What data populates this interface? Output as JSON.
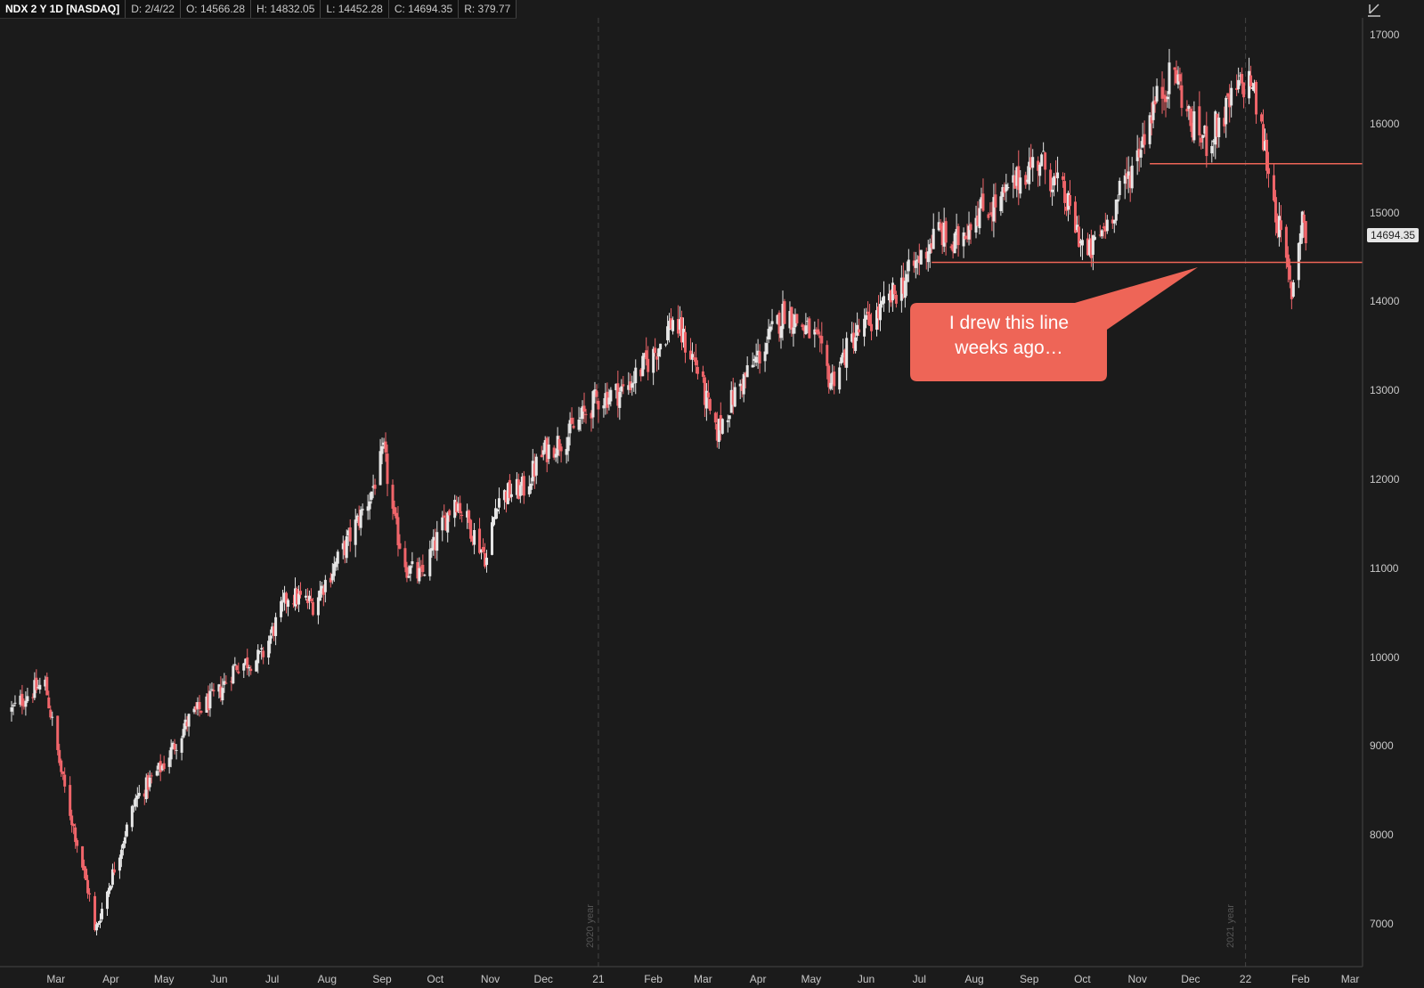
{
  "header": {
    "title": "NDX 2 Y 1D [NASDAQ]",
    "date": "D: 2/4/22",
    "open": "O: 14566.28",
    "high": "H: 14832.05",
    "low": "L: 14452.28",
    "close": "C: 14694.35",
    "range": "R: 379.77"
  },
  "colors": {
    "background": "#1b1b1b",
    "up_candle": "#e6e6e6",
    "down_candle": "#f0656a",
    "annotation": "#ee6557",
    "grid": "#2d2d2d"
  },
  "price_tag": "14694.35",
  "callout": {
    "line1": "I drew this line",
    "line2": "weeks ago…"
  },
  "year_labels": [
    "2020 year",
    "2021 year"
  ],
  "chart_data": {
    "type": "candlestick",
    "title": "NDX 2 Y 1D [NASDAQ]",
    "ylim": [
      6400,
      17300
    ],
    "y_ticks": [
      7000,
      8000,
      9000,
      10000,
      11000,
      12000,
      13000,
      14000,
      15000,
      16000,
      17000
    ],
    "x_tick_labels": [
      "Mar",
      "Apr",
      "May",
      "Jun",
      "Jul",
      "Aug",
      "Sep",
      "Oct",
      "Nov",
      "Dec",
      "21",
      "Feb",
      "Mar",
      "Apr",
      "May",
      "Jun",
      "Jul",
      "Aug",
      "Sep",
      "Oct",
      "Nov",
      "Dec",
      "22",
      "Feb",
      "Mar"
    ],
    "grid": false,
    "last_close": 14694.35,
    "series": [
      {
        "x": [
          "2020-02-05",
          "2020-02-15",
          "2020-02-24",
          "2020-03-05",
          "2020-03-12",
          "2020-03-20",
          "2020-03-23",
          "2020-04-01",
          "2020-04-15",
          "2020-05-01",
          "2020-05-15",
          "2020-06-01",
          "2020-06-10",
          "2020-06-25",
          "2020-07-10",
          "2020-07-24",
          "2020-08-10",
          "2020-08-25",
          "2020-09-02",
          "2020-09-08",
          "2020-09-15",
          "2020-09-23",
          "2020-10-12",
          "2020-10-20",
          "2020-10-30",
          "2020-11-05",
          "2020-11-20",
          "2020-12-01",
          "2020-12-15",
          "2020-12-31",
          "2021-01-15",
          "2021-02-01",
          "2021-02-12",
          "2021-02-25",
          "2021-03-08",
          "2021-03-20",
          "2021-04-05",
          "2021-04-16",
          "2021-05-03",
          "2021-05-12",
          "2021-05-25",
          "2021-06-10",
          "2021-06-25",
          "2021-07-12",
          "2021-07-20",
          "2021-08-01",
          "2021-08-15",
          "2021-08-31",
          "2021-09-07",
          "2021-09-20",
          "2021-10-04",
          "2021-10-15",
          "2021-10-29",
          "2021-11-10",
          "2021-11-22",
          "2021-12-01",
          "2021-12-10",
          "2021-12-20",
          "2021-12-28",
          "2022-01-04",
          "2022-01-13",
          "2022-01-20",
          "2022-01-27",
          "2022-02-02",
          "2022-02-04"
        ],
        "close": [
          9400,
          9600,
          9700,
          8600,
          8000,
          7300,
          6900,
          7500,
          8400,
          8800,
          9300,
          9600,
          9900,
          10000,
          10700,
          10600,
          11200,
          11800,
          12300,
          11500,
          11000,
          10900,
          11800,
          11500,
          11100,
          11800,
          11900,
          12300,
          12500,
          12900,
          13000,
          13400,
          13800,
          13300,
          12500,
          13000,
          13500,
          13900,
          13600,
          13100,
          13600,
          13900,
          14300,
          14800,
          14600,
          15000,
          15100,
          15500,
          15600,
          15200,
          14500,
          14900,
          15500,
          16200,
          16600,
          16000,
          15800,
          16100,
          16400,
          16500,
          15600,
          14800,
          14100,
          15000,
          14694.35
        ]
      }
    ],
    "horizontal_lines": [
      {
        "y": 14440,
        "x_start": "2021-07-08"
      },
      {
        "y": 15550,
        "x_start": "2021-11-08"
      }
    ],
    "annotation": "I drew this line weeks ago…"
  }
}
